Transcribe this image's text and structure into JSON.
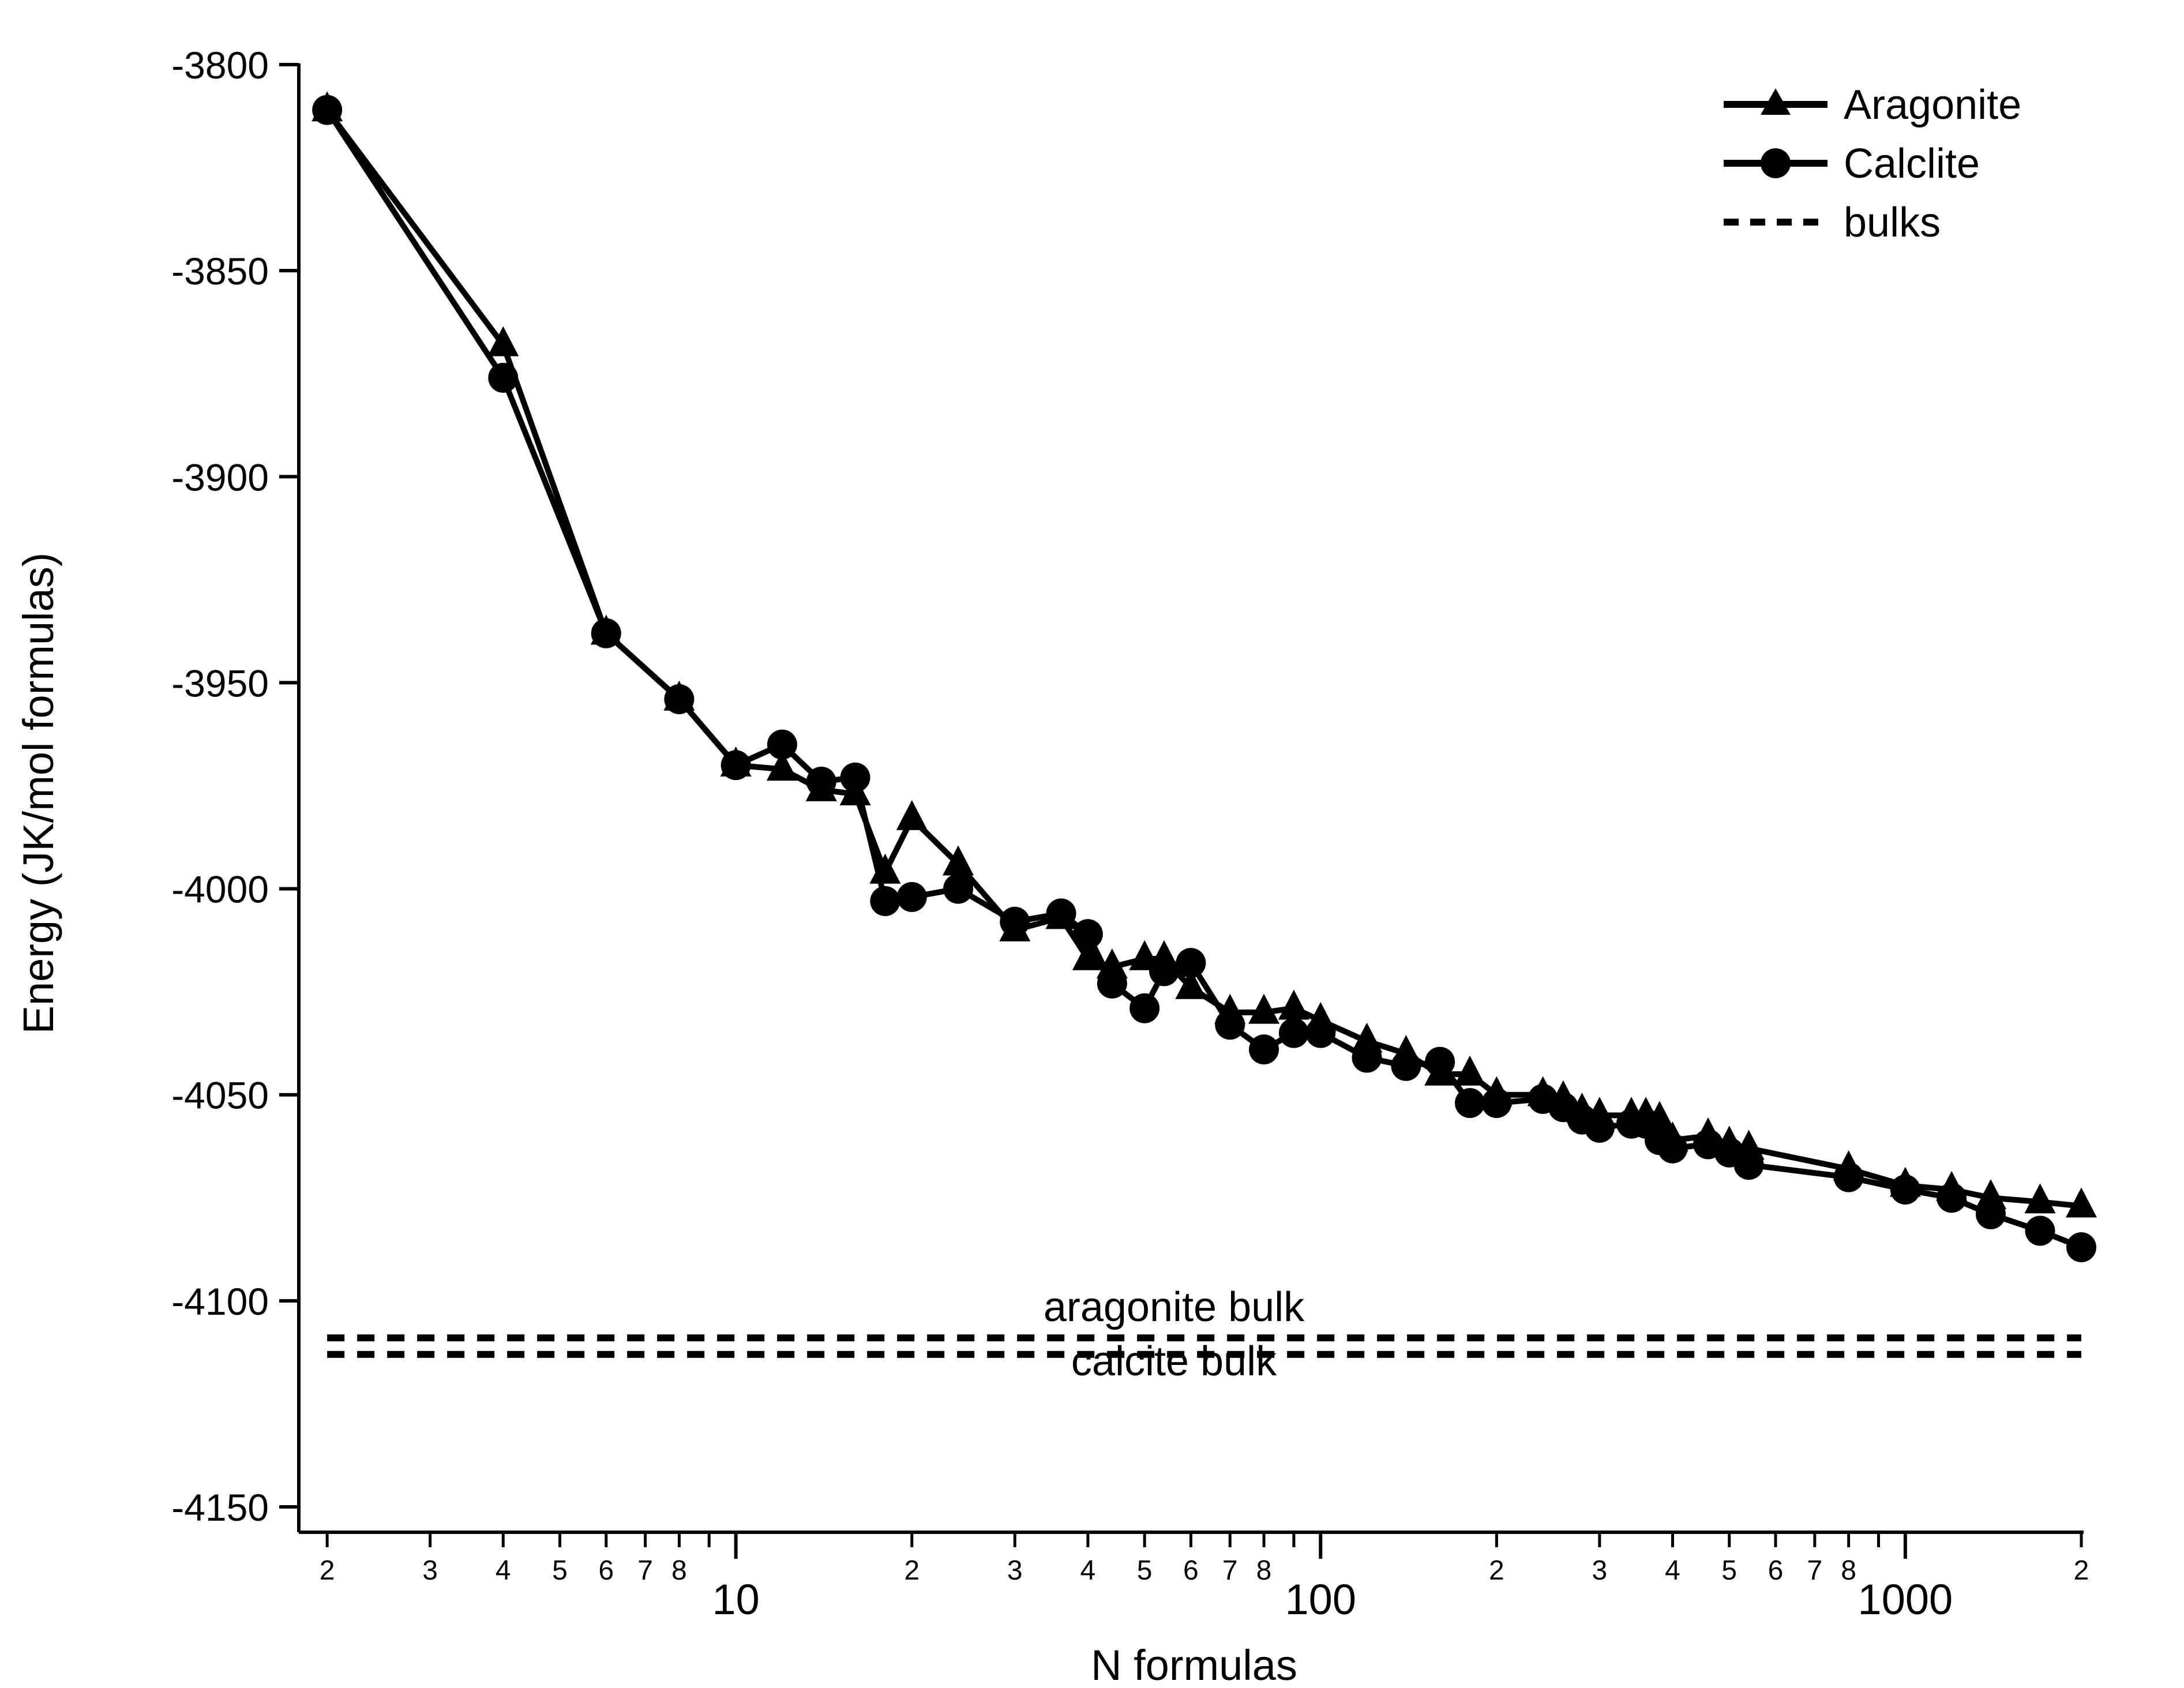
{
  "chart_data": {
    "type": "line",
    "title": "",
    "xlabel": "N formulas",
    "ylabel": "Energy (JK/mol formulas)",
    "xscale": "log",
    "xlim": [
      1.95,
      2000
    ],
    "ylim": [
      -4155,
      -3800
    ],
    "yticks": [
      -3800,
      -3850,
      -3900,
      -3950,
      -4000,
      -4050,
      -4100,
      -4150
    ],
    "xmajor_ticks": [
      {
        "value": 10,
        "label": "10"
      },
      {
        "value": 100,
        "label": "100"
      },
      {
        "value": 1000,
        "label": "1000"
      }
    ],
    "xminor_ticks": [
      {
        "value": 2,
        "label": "2"
      },
      {
        "value": 3,
        "label": "3"
      },
      {
        "value": 4,
        "label": "4"
      },
      {
        "value": 5,
        "label": "5"
      },
      {
        "value": 6,
        "label": "6"
      },
      {
        "value": 7,
        "label": "7"
      },
      {
        "value": 8,
        "label": "8"
      },
      {
        "value": 9,
        "label": ""
      },
      {
        "value": 20,
        "label": "2"
      },
      {
        "value": 30,
        "label": "3"
      },
      {
        "value": 40,
        "label": "4"
      },
      {
        "value": 50,
        "label": "5"
      },
      {
        "value": 60,
        "label": "6"
      },
      {
        "value": 70,
        "label": "7"
      },
      {
        "value": 80,
        "label": "8"
      },
      {
        "value": 90,
        "label": ""
      },
      {
        "value": 200,
        "label": "2"
      },
      {
        "value": 300,
        "label": "3"
      },
      {
        "value": 400,
        "label": "4"
      },
      {
        "value": 500,
        "label": "5"
      },
      {
        "value": 600,
        "label": "6"
      },
      {
        "value": 700,
        "label": "7"
      },
      {
        "value": 800,
        "label": "8"
      },
      {
        "value": 900,
        "label": ""
      },
      {
        "value": 2000,
        "label": "2"
      }
    ],
    "series": [
      {
        "name": "Aragonite",
        "marker": "triangle",
        "x": [
          2,
          4,
          6,
          8,
          10,
          12,
          14,
          16,
          18,
          20,
          24,
          30,
          36,
          40,
          44,
          50,
          54,
          60,
          70,
          80,
          90,
          100,
          120,
          140,
          160,
          180,
          200,
          240,
          260,
          280,
          300,
          340,
          360,
          380,
          400,
          460,
          500,
          540,
          800,
          1000,
          1200,
          1400,
          1700,
          2000
        ],
        "y": [
          -3811,
          -3868,
          -3938,
          -3954,
          -3970,
          -3971,
          -3976,
          -3977,
          -3996,
          -3983,
          -3994,
          -4010,
          -4007,
          -4017,
          -4019,
          -4017,
          -4017,
          -4024,
          -4030,
          -4030,
          -4029,
          -4032,
          -4037,
          -4040,
          -4045,
          -4045,
          -4050,
          -4050,
          -4051,
          -4054,
          -4055,
          -4055,
          -4055,
          -4056,
          -4061,
          -4060,
          -4062,
          -4063,
          -4068,
          -4072,
          -4073,
          -4075,
          -4076,
          -4077
        ],
        "color": "#000000"
      },
      {
        "name": "Calclite",
        "marker": "circle",
        "x": [
          2,
          4,
          6,
          8,
          10,
          12,
          14,
          16,
          18,
          20,
          24,
          30,
          36,
          40,
          44,
          50,
          54,
          60,
          70,
          80,
          90,
          100,
          120,
          140,
          160,
          180,
          200,
          240,
          260,
          280,
          300,
          340,
          360,
          380,
          400,
          460,
          500,
          540,
          800,
          1000,
          1200,
          1400,
          1700,
          2000
        ],
        "y": [
          -3811,
          -3876,
          -3938,
          -3954,
          -3970,
          -3965,
          -3974,
          -3973,
          -4003,
          -4002,
          -4000,
          -4008,
          -4006,
          -4011,
          -4023,
          -4029,
          -4020,
          -4018,
          -4033,
          -4039,
          -4035,
          -4035,
          -4041,
          -4043,
          -4042,
          -4052,
          -4052,
          -4051,
          -4053,
          -4056,
          -4058,
          -4057,
          -4057,
          -4061,
          -4063,
          -4062,
          -4064,
          -4067,
          -4070,
          -4073,
          -4075,
          -4079,
          -4083,
          -4087
        ],
        "color": "#000000"
      }
    ],
    "reference_lines": [
      {
        "name": "aragonite bulk",
        "y": -4109,
        "style": "dashed"
      },
      {
        "name": "calcite bulk",
        "y": -4113,
        "style": "dashed"
      }
    ],
    "legend": {
      "position": "top-right",
      "entries": [
        {
          "label": "Aragonite",
          "marker": "triangle",
          "line": "solid"
        },
        {
          "label": "Calclite",
          "marker": "circle",
          "line": "solid"
        },
        {
          "label": "bulks",
          "marker": "none",
          "line": "dashed"
        }
      ]
    },
    "annotations": [
      "aragonite bulk",
      "calcite bulk"
    ],
    "grid": false
  }
}
